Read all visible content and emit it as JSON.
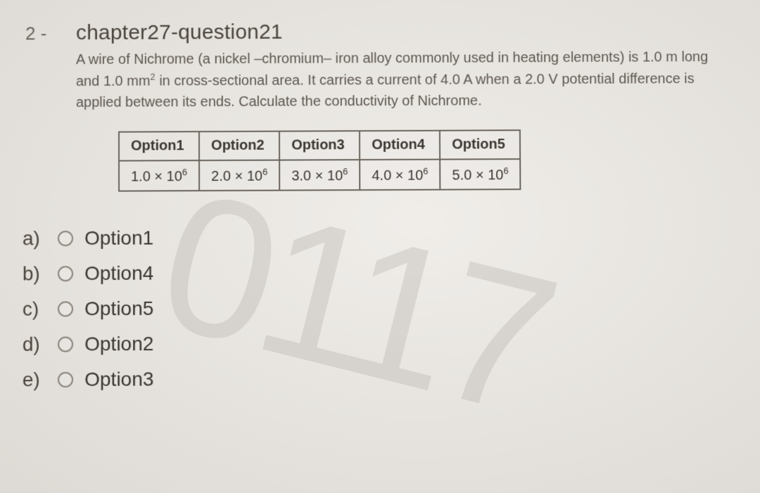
{
  "question": {
    "number": "2 -",
    "title": "chapter27-question21",
    "description_pre": "A wire of Nichrome (a nickel –chromium– iron alloy commonly used in heating elements) is 1.0 m long and 1.0 mm",
    "description_sup": "2",
    "description_post": " in cross-sectional area. It carries a current of 4.0 A when a 2.0 V potential difference is applied between its ends. Calculate the conductivity of Nichrome."
  },
  "table": {
    "headers": [
      "Option1",
      "Option2",
      "Option3",
      "Option4",
      "Option5"
    ],
    "row_pre": [
      "1.0 × 10",
      "2.0 × 10",
      "3.0 × 10",
      "4.0 × 10",
      "5.0 × 10"
    ],
    "row_sup": [
      "6",
      "6",
      "6",
      "6",
      "6"
    ]
  },
  "answers": [
    {
      "letter": "a)",
      "label": "Option1"
    },
    {
      "letter": "b)",
      "label": "Option4"
    },
    {
      "letter": "c)",
      "label": "Option5"
    },
    {
      "letter": "d)",
      "label": "Option2"
    },
    {
      "letter": "e)",
      "label": "Option3"
    }
  ],
  "watermark": "0117",
  "colors": {
    "background": "#e8e4de",
    "text": "#3a3632",
    "border": "#6a645c",
    "watermark": "rgba(180,175,168,0.35)"
  }
}
